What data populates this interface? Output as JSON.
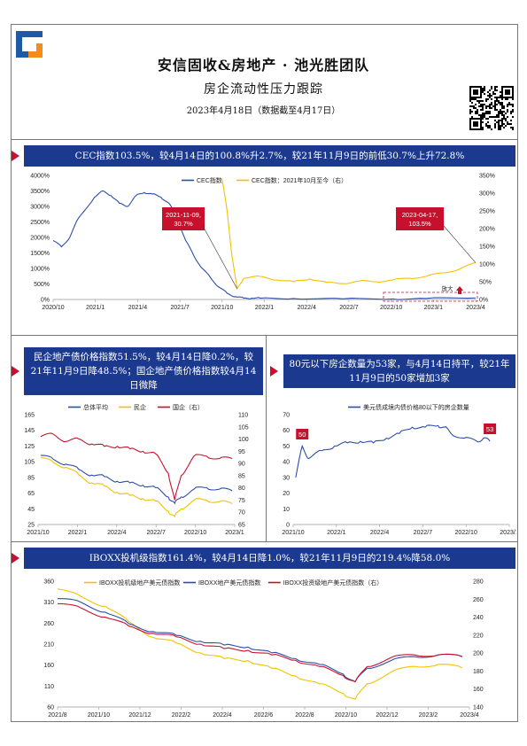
{
  "header": {
    "title": "安信固收&房地产 · 池光胜团队",
    "subtitle": "房企流动性压力跟踪",
    "date_line": "2023年4月18日（数据截至4月17日）"
  },
  "banners": {
    "cec": "CEC指数103.5%，较4月14日的100.8%升2.7%，较21年11月9日的前低30.7%上升72.8%",
    "private": "民企地产债价格指数51.5%，较4月14日降0.2%，较21年11月9日降48.5%；国企地产债价格指数较4月14日微降",
    "count": "80元以下房企数量为53家，与4月14日持平，较21年11月9日的50家增加3家",
    "iboxx": "IBOXX投机级指数161.4%，较4月14日降1.0%，较21年11月9日的219.4%降58.0%"
  },
  "chart_data": [
    {
      "id": "cec",
      "type": "line",
      "legend": [
        "CEC指数",
        "CEC指数：2021年10月至今（右）"
      ],
      "x_ticks": [
        "2020/10",
        "2021/1",
        "2021/4",
        "2021/7",
        "2021/10",
        "2022/1",
        "2022/4",
        "2022/7",
        "2022/10",
        "2023/1",
        "2023/4"
      ],
      "y_left_ticks": [
        "0%",
        "500%",
        "1000%",
        "1500%",
        "2000%",
        "2500%",
        "3000%",
        "3500%",
        "4000%"
      ],
      "y_right_ticks": [
        "0%",
        "50%",
        "100%",
        "150%",
        "200%",
        "250%",
        "300%",
        "350%"
      ],
      "ylim_left": [
        0,
        4000
      ],
      "ylim_right": [
        0,
        350
      ],
      "annotations": [
        {
          "text": "2021-11-09,\n30.7%",
          "x": "2021-11-09",
          "y_right": 30.7
        },
        {
          "text": "2023-04-17,\n103.5%",
          "x": "2023-04-17",
          "y_right": 103.5
        }
      ],
      "side_label": "放大",
      "series": [
        {
          "name": "CEC指数",
          "axis": "left",
          "color": "#2c4ca8",
          "x": [
            2020.75,
            2020.8,
            2020.85,
            2020.9,
            2021.0,
            2021.05,
            2021.1,
            2021.15,
            2021.2,
            2021.25,
            2021.3,
            2021.35,
            2021.4,
            2021.45,
            2021.5,
            2021.55,
            2021.6,
            2021.65,
            2021.7,
            2021.75,
            2021.8,
            2021.85,
            2021.9,
            2021.95,
            2022.0,
            2022.2,
            2022.5,
            2022.8,
            2023.0,
            2023.3
          ],
          "y": [
            1900,
            1700,
            2000,
            2600,
            3300,
            3500,
            3350,
            3100,
            3000,
            3350,
            3450,
            3400,
            3300,
            3100,
            2600,
            1900,
            1400,
            1000,
            700,
            400,
            200,
            90,
            40,
            45,
            40,
            30,
            20,
            15,
            30,
            50
          ]
        },
        {
          "name": "CEC指数：2021年10月至今（右）",
          "axis": "right",
          "color": "#f2c200",
          "x": [
            2021.77,
            2021.8,
            2021.83,
            2021.86,
            2021.9,
            2022.0,
            2022.1,
            2022.2,
            2022.3,
            2022.4,
            2022.5,
            2022.6,
            2022.7,
            2022.8,
            2022.9,
            2023.0,
            2023.1,
            2023.2,
            2023.3
          ],
          "y": [
            340,
            250,
            120,
            30.7,
            60,
            65,
            55,
            50,
            58,
            48,
            45,
            52,
            50,
            55,
            60,
            65,
            75,
            85,
            103.5
          ]
        }
      ]
    },
    {
      "id": "price",
      "type": "line",
      "legend": [
        "总体平均",
        "民企",
        "国企（右）"
      ],
      "x_ticks": [
        "2021/10",
        "2022/1",
        "2022/4",
        "2022/7",
        "2022/10",
        "2023/1"
      ],
      "y_left_ticks": [
        "25",
        "45",
        "65",
        "85",
        "105",
        "125",
        "145",
        "165"
      ],
      "y_right_ticks": [
        "65",
        "70",
        "75",
        "80",
        "85",
        "90",
        "95",
        "100",
        "105",
        "110"
      ],
      "ylim_left": [
        25,
        165
      ],
      "ylim_right": [
        65,
        110
      ],
      "series": [
        {
          "name": "总体平均",
          "axis": "left",
          "color": "#2c4ca8",
          "x": [
            2021.8,
            2021.9,
            2022.0,
            2022.1,
            2022.2,
            2022.3,
            2022.4,
            2022.5,
            2022.6,
            2022.7,
            2022.8,
            2022.85,
            2022.9,
            2023.0,
            2023.1,
            2023.2,
            2023.3
          ],
          "y": [
            113,
            108,
            102,
            95,
            88,
            86,
            80,
            78,
            75,
            72,
            60,
            52,
            60,
            70,
            72,
            70,
            68
          ]
        },
        {
          "name": "民企",
          "axis": "left",
          "color": "#f2c200",
          "x": [
            2021.8,
            2021.9,
            2022.0,
            2022.1,
            2022.2,
            2022.3,
            2022.4,
            2022.5,
            2022.6,
            2022.7,
            2022.8,
            2022.85,
            2022.9,
            2023.0,
            2023.1,
            2023.2,
            2023.3
          ],
          "y": [
            110,
            104,
            98,
            88,
            78,
            74,
            66,
            62,
            58,
            55,
            42,
            35,
            45,
            56,
            56,
            54,
            51.5
          ]
        },
        {
          "name": "国企（右）",
          "axis": "right",
          "color": "#c8102e",
          "x": [
            2021.8,
            2021.9,
            2022.0,
            2022.1,
            2022.2,
            2022.3,
            2022.4,
            2022.5,
            2022.6,
            2022.7,
            2022.8,
            2022.85,
            2022.9,
            2023.0,
            2023.1,
            2023.2,
            2023.3
          ],
          "y": [
            101,
            102,
            99,
            100,
            98,
            97,
            97,
            96,
            95,
            94,
            86,
            75,
            85,
            93,
            93,
            92,
            92
          ]
        }
      ]
    },
    {
      "id": "count",
      "type": "line",
      "legend": [
        "美元债成境内债价格80以下的房企数量"
      ],
      "x_ticks": [
        "2021/10",
        "2022/1",
        "2022/4",
        "2022/7",
        "2022/10",
        "2023/1"
      ],
      "y_left_ticks": [
        "0",
        "10",
        "20",
        "30",
        "40",
        "50",
        "60",
        "70"
      ],
      "ylim_left": [
        0,
        70
      ],
      "labels": [
        {
          "text": "50",
          "x": 2021.85
        },
        {
          "text": "53",
          "x": 2023.3
        }
      ],
      "series": [
        {
          "name": "美元债成境内债价格80以下的房企数量",
          "axis": "left",
          "color": "#2c4ca8",
          "x": [
            2021.8,
            2021.85,
            2021.9,
            2022.0,
            2022.1,
            2022.2,
            2022.3,
            2022.4,
            2022.5,
            2022.6,
            2022.7,
            2022.8,
            2022.9,
            2022.95,
            2023.0,
            2023.1,
            2023.2,
            2023.25,
            2023.3
          ],
          "y": [
            30,
            50,
            42,
            47,
            50,
            52,
            53,
            52,
            55,
            58,
            62,
            62,
            63,
            62,
            58,
            55,
            53,
            55,
            53
          ]
        }
      ]
    },
    {
      "id": "iboxx",
      "type": "line",
      "legend": [
        "IBOXX投机级地产美元债指数",
        "IBOXX地产美元债指数",
        "IBOXX投资级地产美元债指数（右）"
      ],
      "x_ticks": [
        "2021/8",
        "2021/10",
        "2021/12",
        "2022/2",
        "2022/4",
        "2022/6",
        "2022/8",
        "2022/10",
        "2022/12",
        "2023/2",
        "2023/4"
      ],
      "y_left_ticks": [
        "60",
        "110",
        "160",
        "210",
        "260",
        "310",
        "360"
      ],
      "y_right_ticks": [
        "140",
        "160",
        "180",
        "200",
        "220",
        "240",
        "260",
        "280"
      ],
      "ylim_left": [
        60,
        385
      ],
      "ylim_right": [
        140,
        280
      ],
      "series": [
        {
          "name": "IBOXX投机级地产美元债指数",
          "axis": "left",
          "color": "#f2c200",
          "x": [
            2021.6,
            2021.7,
            2021.8,
            2021.9,
            2022.0,
            2022.1,
            2022.2,
            2022.3,
            2022.4,
            2022.5,
            2022.6,
            2022.7,
            2022.8,
            2022.85,
            2022.9,
            2023.0,
            2023.1,
            2023.2,
            2023.3
          ],
          "y": [
            365,
            345,
            320,
            280,
            240,
            225,
            200,
            185,
            180,
            160,
            140,
            120,
            95,
            80,
            120,
            150,
            165,
            170,
            161.4
          ]
        },
        {
          "name": "IBOXX地产美元债指数",
          "axis": "left",
          "color": "#2c4ca8",
          "x": [
            2021.6,
            2021.7,
            2021.8,
            2021.9,
            2022.0,
            2022.1,
            2022.2,
            2022.3,
            2022.4,
            2022.5,
            2022.6,
            2022.7,
            2022.8,
            2022.85,
            2022.9,
            2023.0,
            2023.1,
            2023.2,
            2023.3
          ],
          "y": [
            340,
            330,
            305,
            275,
            255,
            245,
            230,
            220,
            215,
            200,
            185,
            170,
            145,
            125,
            160,
            180,
            190,
            195,
            190
          ]
        },
        {
          "name": "IBOXX投资级地产美元债指数（右）",
          "axis": "right",
          "color": "#c8102e",
          "x": [
            2021.6,
            2021.7,
            2021.8,
            2021.9,
            2022.0,
            2022.1,
            2022.2,
            2022.3,
            2022.4,
            2022.5,
            2022.6,
            2022.7,
            2022.8,
            2022.85,
            2022.9,
            2023.0,
            2023.1,
            2023.2,
            2023.3
          ],
          "y": [
            255,
            250,
            240,
            230,
            222,
            218,
            210,
            205,
            203,
            198,
            192,
            185,
            175,
            168,
            185,
            195,
            198,
            198,
            196
          ]
        }
      ]
    }
  ]
}
